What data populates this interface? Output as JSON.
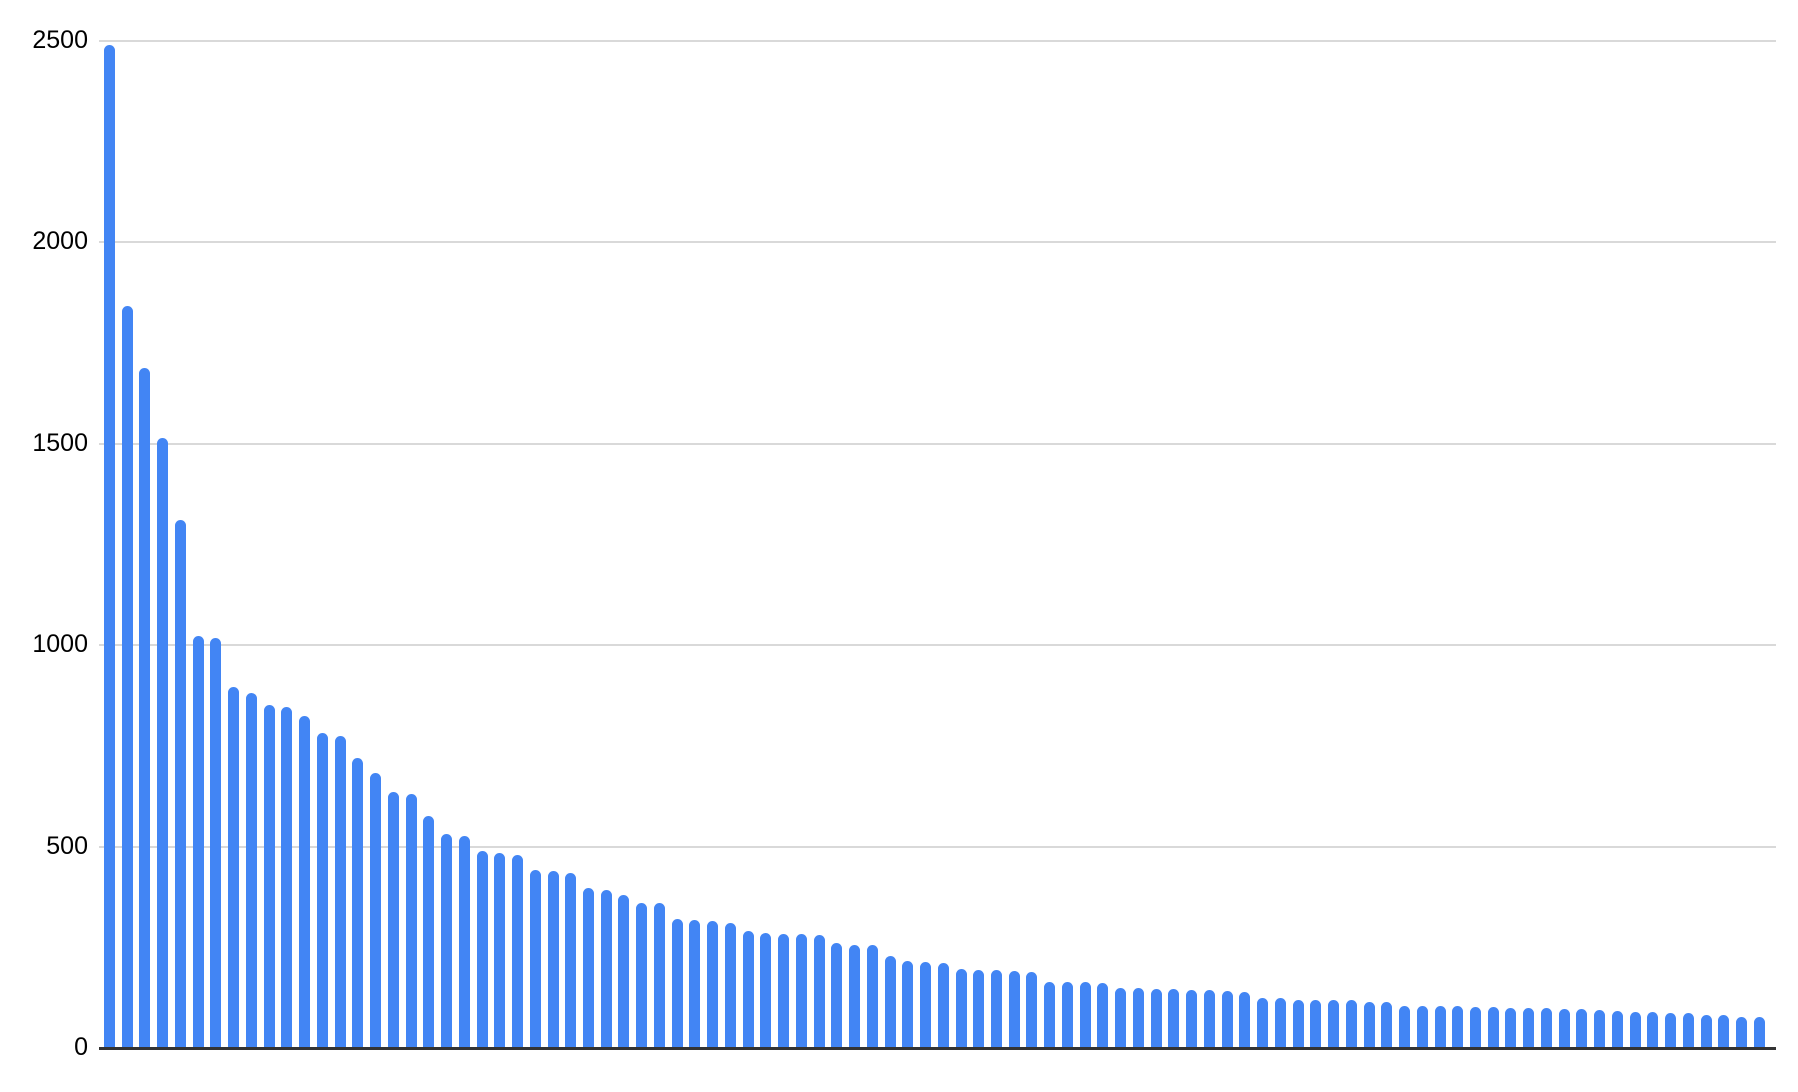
{
  "chart_data": {
    "type": "bar",
    "title": "",
    "xlabel": "",
    "ylabel": "",
    "x_tick_labels": [],
    "y_ticks": [
      0,
      500,
      1000,
      1500,
      2000,
      2500
    ],
    "y_tick_labels": [
      "0",
      "500",
      "1000",
      "1500",
      "2000",
      "2500"
    ],
    "ylim": [
      0,
      2500
    ],
    "grid": true,
    "legend_position": "none",
    "bar_color": "#4285f4",
    "gridline_color": "#d9d9d9",
    "axis_line_color": "#333333",
    "label_color": "#000000",
    "background_color": "#ffffff",
    "values": [
      2490,
      1840,
      1687,
      1513,
      1311,
      1023,
      1017,
      897,
      881,
      852,
      846,
      825,
      781,
      773,
      720,
      682,
      634,
      630,
      575,
      531,
      525,
      490,
      485,
      480,
      441,
      438,
      434,
      397,
      391,
      380,
      361,
      360,
      321,
      318,
      316,
      310,
      291,
      285,
      283,
      282,
      281,
      260,
      256,
      255,
      229,
      215,
      214,
      210,
      196,
      194,
      193,
      192,
      189,
      165,
      164,
      163,
      161,
      150,
      148,
      147,
      146,
      145,
      143,
      141,
      140,
      125,
      124,
      120,
      120,
      119,
      118,
      114,
      113,
      105,
      104,
      104,
      103,
      102,
      101,
      100,
      99,
      99,
      98,
      97,
      94,
      93,
      90,
      89,
      88,
      87,
      82,
      81,
      78,
      77
    ]
  }
}
